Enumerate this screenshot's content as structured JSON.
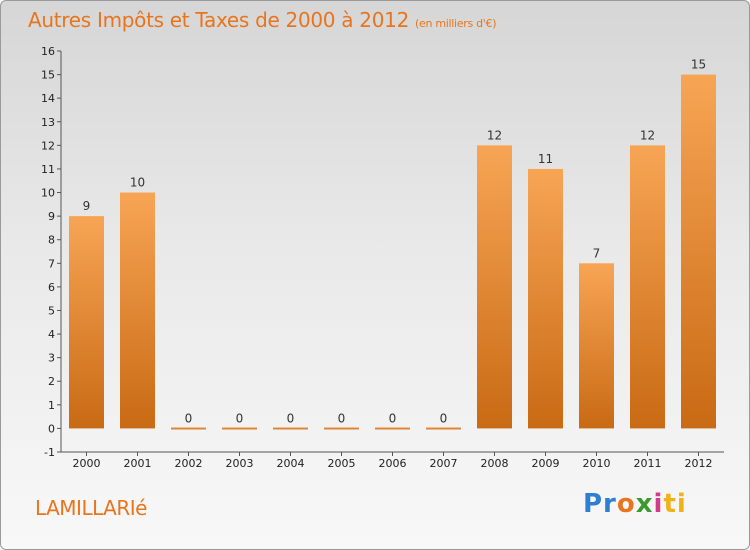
{
  "header": {
    "title": "Autres Impôts et Taxes de 2000 à 2012",
    "unit": "(en milliers d'€)"
  },
  "footer": {
    "commune": "LAMILLARIé",
    "logo_parts": [
      "Pr",
      "o",
      "x",
      "i",
      "ti"
    ]
  },
  "colors": {
    "bar_top": "#f7a555",
    "bar_bottom": "#c96a14",
    "accent": "#e8751d"
  },
  "chart_data": {
    "type": "bar",
    "title": "Autres Impôts et Taxes de 2000 à 2012",
    "subtitle": "(en milliers d'€)",
    "categories": [
      "2000",
      "2001",
      "2002",
      "2003",
      "2004",
      "2005",
      "2006",
      "2007",
      "2008",
      "2009",
      "2010",
      "2011",
      "2012"
    ],
    "values": [
      9,
      10,
      0,
      0,
      0,
      0,
      0,
      0,
      12,
      11,
      7,
      12,
      15
    ],
    "data_labels": [
      "9",
      "10",
      "0",
      "0",
      "0",
      "0",
      "0",
      "0",
      "12",
      "11",
      "7",
      "12",
      "15"
    ],
    "yticks": [
      "-1",
      "0",
      "1",
      "2",
      "3",
      "4",
      "5",
      "6",
      "7",
      "8",
      "9",
      "10",
      "11",
      "12",
      "13",
      "14",
      "15",
      "16"
    ],
    "ylim": [
      -1,
      16
    ],
    "xlabel": "",
    "ylabel": "",
    "grid": false,
    "legend": "none"
  }
}
